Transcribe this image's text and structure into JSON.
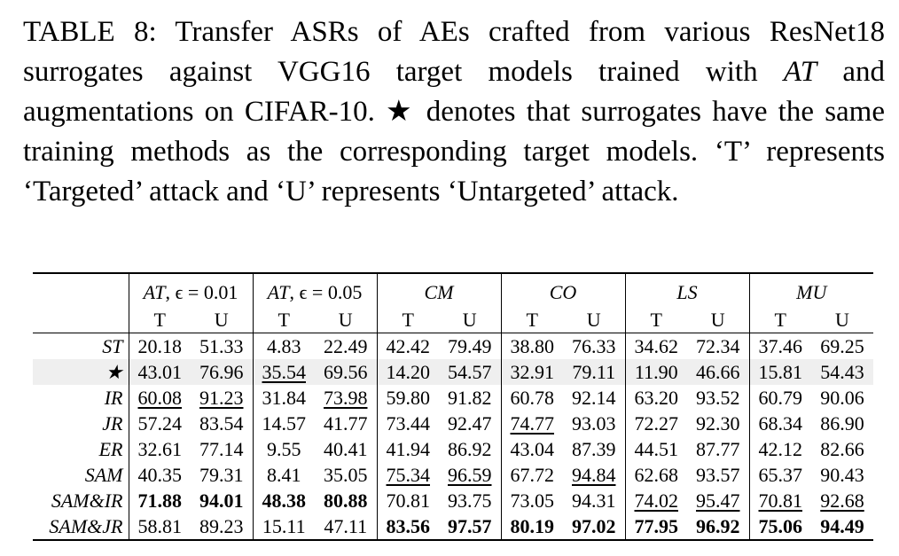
{
  "caption": {
    "before": "TABLE 8: Transfer ASRs of AEs crafted from various ResNet18 surrogates against VGG16 target models trained with ",
    "italic": "AT",
    "after": " and augmentations on CIFAR-10. ★ denotes that surrogates have the same training methods as the corresponding target models. ‘T’ represents ‘Targeted’ attack and ‘U’ represents ‘Untargeted’ attack."
  },
  "table": {
    "groups": [
      {
        "italic": "AT",
        "rest": ", ϵ = 0.01"
      },
      {
        "italic": "AT",
        "rest": ", ϵ = 0.05"
      },
      {
        "italic": "CM",
        "rest": ""
      },
      {
        "italic": "CO",
        "rest": ""
      },
      {
        "italic": "LS",
        "rest": ""
      },
      {
        "italic": "MU",
        "rest": ""
      }
    ],
    "columns": [
      "T",
      "U",
      "T",
      "U",
      "T",
      "U",
      "T",
      "U",
      "T",
      "U",
      "T",
      "U"
    ],
    "rows": [
      {
        "label": "ST",
        "cells": [
          "20.18",
          "51.33",
          "4.83",
          "22.49",
          "42.42",
          "79.49",
          "38.80",
          "76.33",
          "34.62",
          "72.34",
          "37.46",
          "69.25"
        ],
        "bold": [],
        "underline": [],
        "shaded": false
      },
      {
        "label": "★",
        "cells": [
          "43.01",
          "76.96",
          "35.54",
          "69.56",
          "14.20",
          "54.57",
          "32.91",
          "79.11",
          "11.90",
          "46.66",
          "15.81",
          "54.43"
        ],
        "bold": [],
        "underline": [
          2
        ],
        "shaded": true
      },
      {
        "label": "IR",
        "cells": [
          "60.08",
          "91.23",
          "31.84",
          "73.98",
          "59.80",
          "91.82",
          "60.78",
          "92.14",
          "63.20",
          "93.52",
          "60.79",
          "90.06"
        ],
        "bold": [],
        "underline": [
          0,
          1,
          3
        ],
        "shaded": false
      },
      {
        "label": "JR",
        "cells": [
          "57.24",
          "83.54",
          "14.57",
          "41.77",
          "73.44",
          "92.47",
          "74.77",
          "93.03",
          "72.27",
          "92.30",
          "68.34",
          "86.90"
        ],
        "bold": [],
        "underline": [
          6
        ],
        "shaded": false
      },
      {
        "label": "ER",
        "cells": [
          "32.61",
          "77.14",
          "9.55",
          "40.41",
          "41.94",
          "86.92",
          "43.04",
          "87.39",
          "44.51",
          "87.77",
          "42.12",
          "82.66"
        ],
        "bold": [],
        "underline": [],
        "shaded": false
      },
      {
        "label": "SAM",
        "cells": [
          "40.35",
          "79.31",
          "8.41",
          "35.05",
          "75.34",
          "96.59",
          "67.72",
          "94.84",
          "62.68",
          "93.57",
          "65.37",
          "90.43"
        ],
        "bold": [],
        "underline": [
          4,
          5,
          7
        ],
        "shaded": false
      },
      {
        "label": "SAM&IR",
        "cells": [
          "71.88",
          "94.01",
          "48.38",
          "80.88",
          "70.81",
          "93.75",
          "73.05",
          "94.31",
          "74.02",
          "95.47",
          "70.81",
          "92.68"
        ],
        "bold": [
          0,
          1,
          2,
          3
        ],
        "underline": [
          8,
          9,
          10,
          11
        ],
        "shaded": false
      },
      {
        "label": "SAM&JR",
        "cells": [
          "58.81",
          "89.23",
          "15.11",
          "47.11",
          "83.56",
          "97.57",
          "80.19",
          "97.02",
          "77.95",
          "96.92",
          "75.06",
          "94.49"
        ],
        "bold": [
          4,
          5,
          6,
          7,
          8,
          9,
          10,
          11
        ],
        "underline": [],
        "shaded": false
      }
    ]
  }
}
